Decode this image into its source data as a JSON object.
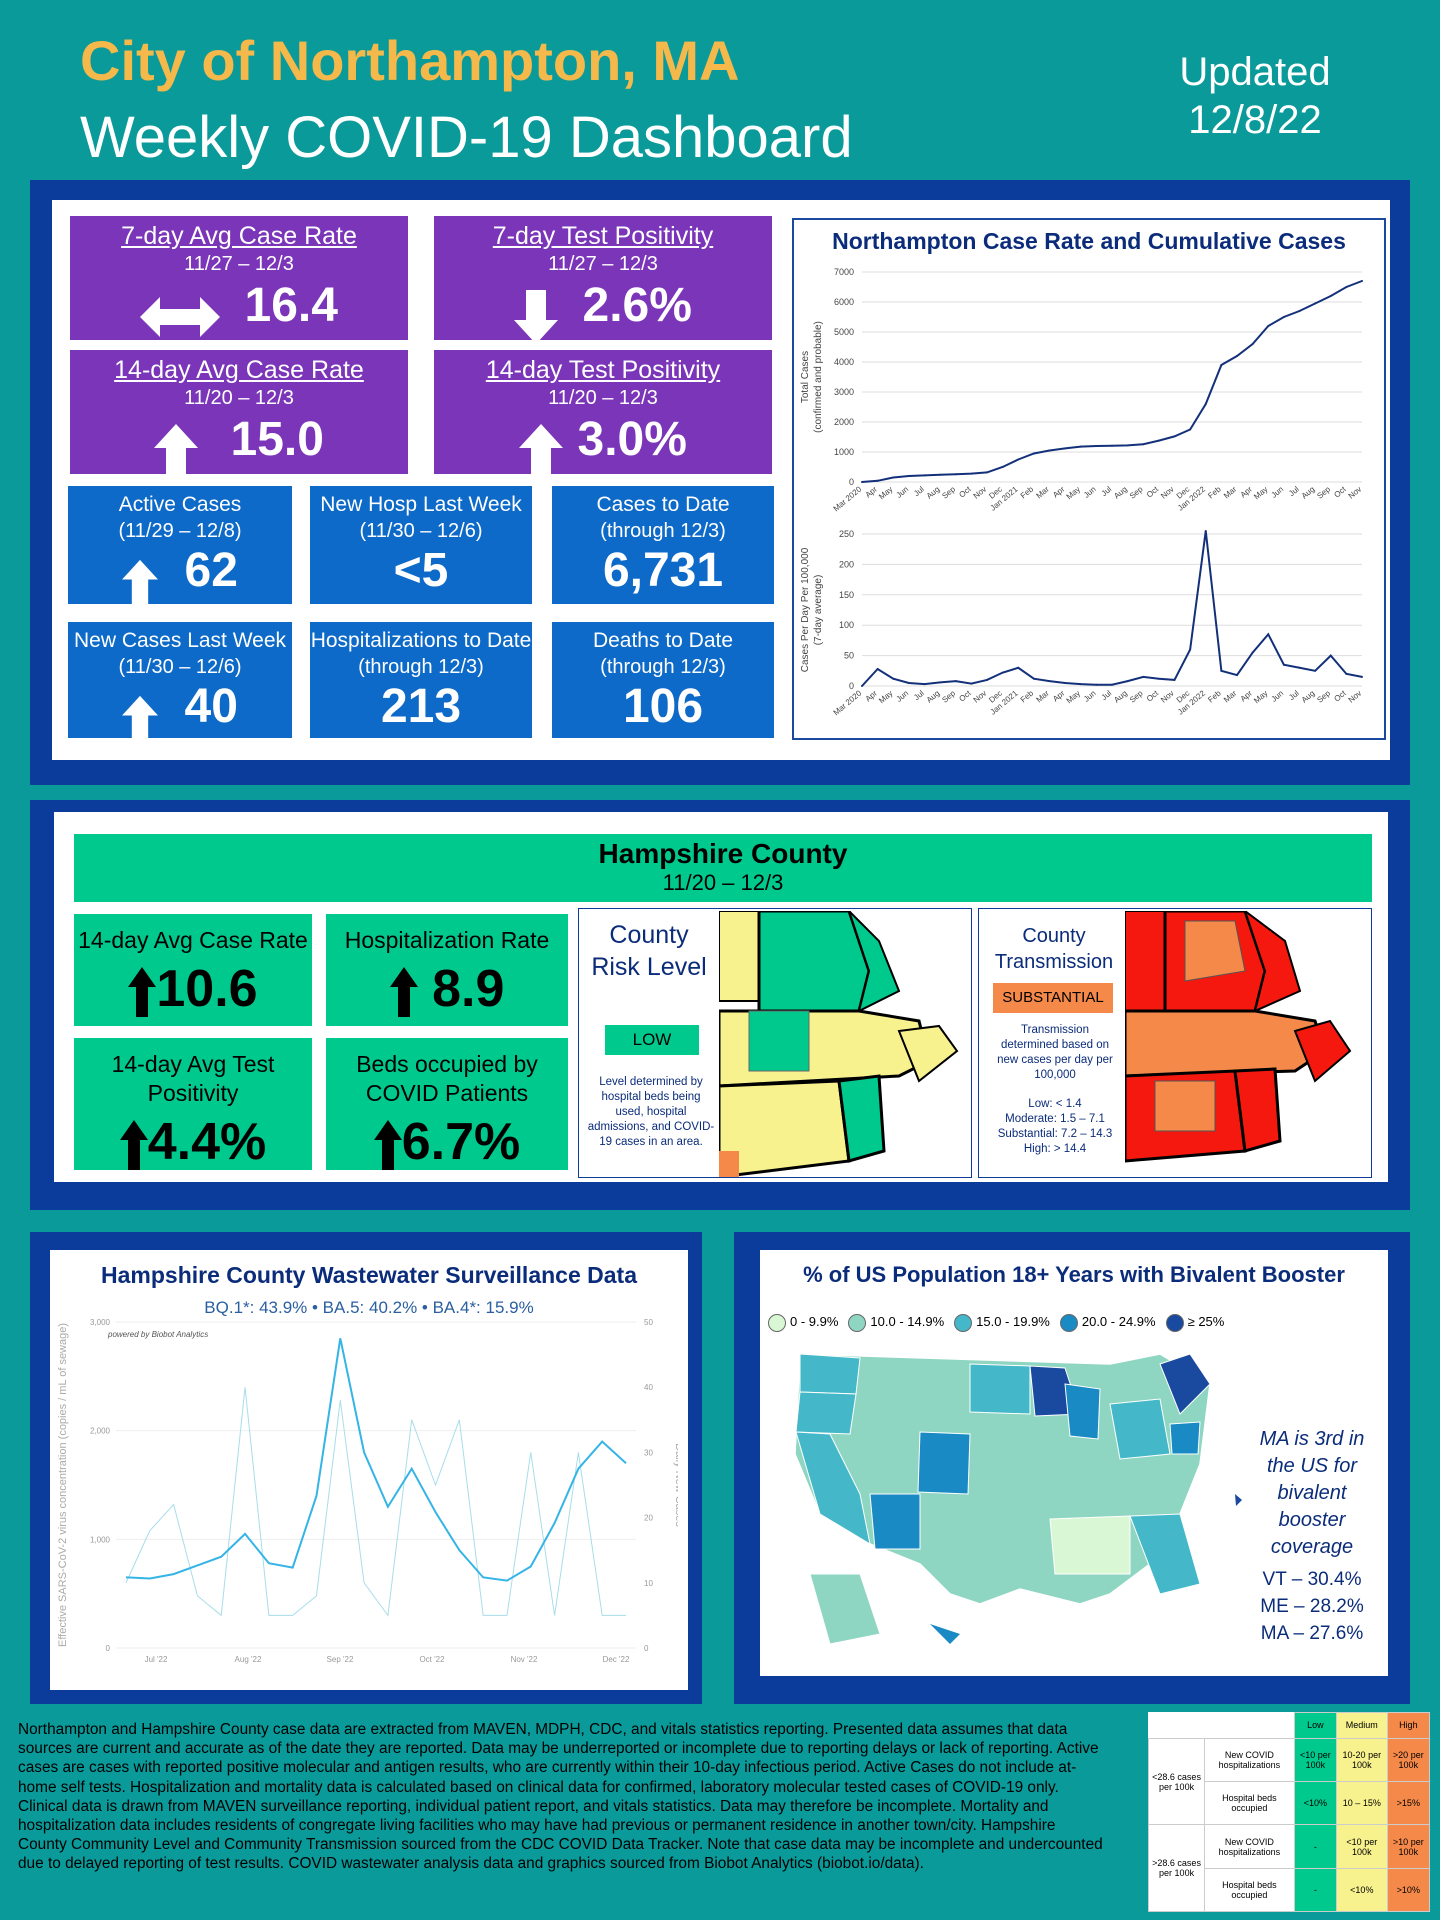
{
  "header": {
    "city": "City of Northampton, MA",
    "title": "Weekly COVID-19 Dashboard",
    "updated_label": "Updated",
    "updated_date": "12/8/22"
  },
  "colors": {
    "purple": "#7b35b8",
    "blue": "#0d6ac8",
    "green": "#00c98d",
    "navy": "#0b3c9c",
    "teal": "#0a9a9a",
    "orange": "#f5b84a"
  },
  "tiles": {
    "case7": {
      "label": "7-day Avg Case Rate",
      "dates": "11/27 – 12/3",
      "value": "16.4",
      "trend": "flat"
    },
    "pos7": {
      "label": "7-day Test Positivity",
      "dates": "11/27 – 12/3",
      "value": "2.6%",
      "trend": "down"
    },
    "case14": {
      "label": "14-day Avg Case Rate",
      "dates": "11/20 – 12/3",
      "value": "15.0",
      "trend": "up"
    },
    "pos14": {
      "label": "14-day Test Positivity",
      "dates": "11/20 – 12/3",
      "value": "3.0%",
      "trend": "up"
    },
    "active": {
      "label": "Active Cases",
      "dates": "(11/29 – 12/8)",
      "value": "62",
      "trend": "up"
    },
    "newhosp": {
      "label": "New Hosp Last Week",
      "dates": "(11/30 – 12/6)",
      "value": "<5"
    },
    "cases": {
      "label": "Cases to Date",
      "dates": "(through 12/3)",
      "value": "6,731"
    },
    "newcases": {
      "label": "New Cases Last Week",
      "dates": "(11/30 – 12/6)",
      "value": "40",
      "trend": "up"
    },
    "hosp": {
      "label": "Hospitalizations to Date",
      "dates": "(through 12/3)",
      "value": "213"
    },
    "deaths": {
      "label": "Deaths to Date",
      "dates": "(through 12/3)",
      "value": "106"
    }
  },
  "county": {
    "title": "Hampshire County",
    "dates": "11/20 – 12/3",
    "case14": {
      "label": "14-day Avg Case Rate",
      "value": "10.6"
    },
    "hosprate": {
      "label": "Hospitalization Rate",
      "value": "8.9"
    },
    "pos14": {
      "label": "14-day Avg Test Positivity",
      "value": "4.4%"
    },
    "beds": {
      "label": "Beds occupied by COVID Patients",
      "value": "6.7%"
    },
    "risk": {
      "title": "County Risk Level",
      "level": "LOW",
      "note": "Level determined by hospital beds being used, hospital admissions, and COVID-19 cases in an area."
    },
    "trans": {
      "title": "County Transmission",
      "level": "SUBSTANTIAL",
      "note": "Transmission determined based on new cases per day per 100,000",
      "low": "Low: < 1.4",
      "moderate": "Moderate: 1.5 – 7.1",
      "substantial": "Substantial: 7.2 – 14.3",
      "high": "High: > 14.4"
    }
  },
  "wastewater": {
    "title": "Hampshire County Wastewater Surveillance Data",
    "variants": "BQ.1*: 43.9% • BA.5: 40.2% • BA.4*: 15.9%",
    "powered": "powered by Biobot Analytics",
    "ylabel": "Effective SARS-CoV-2 virus concentration (copies / mL of sewage)",
    "y2label": "Daily New Cases"
  },
  "booster": {
    "title": "% of US Population 18+ Years with Bivalent Booster",
    "legend": [
      {
        "label": "0 - 9.9%",
        "color": "#d9f7d4"
      },
      {
        "label": "10.0 - 14.9%",
        "color": "#8fd6c2"
      },
      {
        "label": "15.0 - 19.9%",
        "color": "#44b8c8"
      },
      {
        "label": "20.0 - 24.9%",
        "color": "#1a8ac4"
      },
      {
        "label": "≥ 25%",
        "color": "#1a4aa0"
      }
    ],
    "note": "MA is 3rd in the US for bivalent booster coverage",
    "vt": "VT – 30.4%",
    "me": "ME – 28.2%",
    "ma": "MA – 27.6%"
  },
  "footnote": "Northampton and Hampshire County case data are extracted from MAVEN, MDPH, CDC, and vitals statistics reporting. Presented data assumes that data sources are current and accurate as of the date they are reported. Data may be underreported or incomplete due to reporting delays or lack of reporting. Active cases are cases with reported positive molecular and antigen results, who are currently within their 10-day infectious period. Active Cases do not include at-home self tests. Hospitalization and mortality data is calculated based on clinical data for confirmed, laboratory molecular tested cases of COVID-19 only. Clinical data is drawn from MAVEN surveillance reporting, individual patient report, and vitals statistics. Data may therefore be incomplete. Mortality and hospitalization data includes residents of congregate living facilities who may have had previous or permanent residence in another town/city. Hampshire County Community Level and Community Transmission sourced from the CDC COVID Data Tracker. Note that case data may be incomplete and undercounted due to delayed reporting of test results. COVID wastewater analysis data and graphics sourced from Biobot Analytics (biobot.io/data).",
  "levels_table": {
    "headers": [
      "Low",
      "Medium",
      "High"
    ],
    "g1": "<28.6 cases per 100k",
    "g2": ">28.6 cases per 100k",
    "rows": [
      {
        "label": "New COVID hospitalizations",
        "low": "<10 per 100k",
        "med": "10-20 per 100k",
        "high": ">20 per 100k"
      },
      {
        "label": "Hospital beds occupied",
        "low": "<10%",
        "med": "10 – 15%",
        "high": ">15%"
      },
      {
        "label": "New COVID hospitalizations",
        "low": "-",
        "med": "<10 per 100k",
        "high": ">10 per 100k"
      },
      {
        "label": "Hospital beds occupied",
        "low": "-",
        "med": "<10%",
        "high": ">10%"
      }
    ]
  },
  "chart_data": [
    {
      "type": "line",
      "title": "Northampton Case Rate and Cumulative Cases",
      "ylabel": "Total Cases (confirmed and probable)",
      "ylim": [
        0,
        7000
      ],
      "yticks": [
        0,
        1000,
        2000,
        3000,
        4000,
        5000,
        6000,
        7000
      ],
      "xticks": [
        "Mar 2020",
        "Apr",
        "May",
        "Jun",
        "Jul",
        "Aug",
        "Sep",
        "Oct",
        "Nov",
        "Dec",
        "Jan 2021",
        "Feb",
        "Mar",
        "Apr",
        "May",
        "Jun",
        "Jul",
        "Aug",
        "Sep",
        "Oct",
        "Nov",
        "Dec",
        "Jan 2022",
        "Feb",
        "Mar",
        "Apr",
        "May",
        "Jun",
        "Jul",
        "Aug",
        "Sep",
        "Oct",
        "Nov"
      ],
      "x": [
        0,
        1,
        2,
        3,
        4,
        5,
        6,
        7,
        8,
        9,
        10,
        11,
        12,
        13,
        14,
        15,
        16,
        17,
        18,
        19,
        20,
        21,
        22,
        23,
        24,
        25,
        26,
        27,
        28,
        29,
        30,
        31,
        32
      ],
      "values": [
        0,
        40,
        150,
        200,
        220,
        240,
        260,
        280,
        320,
        500,
        750,
        950,
        1050,
        1120,
        1180,
        1200,
        1210,
        1220,
        1260,
        1380,
        1520,
        1750,
        2600,
        3900,
        4200,
        4600,
        5200,
        5500,
        5700,
        5950,
        6200,
        6500,
        6700
      ]
    },
    {
      "type": "line",
      "ylabel": "Cases Per Day Per 100,000 (7-day average)",
      "ylim": [
        0,
        250
      ],
      "yticks": [
        0,
        50,
        100,
        150,
        200,
        250
      ],
      "xticks": [
        "Mar 2020",
        "Apr",
        "May",
        "Jun",
        "Jul",
        "Aug",
        "Sep",
        "Oct",
        "Nov",
        "Dec",
        "Jan 2021",
        "Feb",
        "Mar",
        "Apr",
        "May",
        "Jun",
        "Jul",
        "Aug",
        "Sep",
        "Oct",
        "Nov",
        "Dec",
        "Jan 2022",
        "Feb",
        "Mar",
        "Apr",
        "May",
        "Jun",
        "Jul",
        "Aug",
        "Sep",
        "Oct",
        "Nov"
      ],
      "x": [
        0,
        1,
        2,
        3,
        4,
        5,
        6,
        7,
        8,
        9,
        10,
        11,
        12,
        13,
        14,
        15,
        16,
        17,
        18,
        19,
        20,
        21,
        22,
        23,
        24,
        25,
        26,
        27,
        28,
        29,
        30,
        31,
        32
      ],
      "values": [
        0,
        28,
        12,
        5,
        3,
        6,
        8,
        4,
        10,
        22,
        30,
        12,
        8,
        5,
        3,
        2,
        2,
        8,
        15,
        12,
        10,
        60,
        255,
        25,
        18,
        55,
        85,
        35,
        30,
        25,
        50,
        20,
        15
      ]
    },
    {
      "type": "line",
      "title": "Hampshire County Wastewater Surveillance Data",
      "ylabel": "Effective SARS-CoV-2 virus concentration (copies / mL of sewage)",
      "y2label": "Daily New Cases",
      "ylim": [
        0,
        3000
      ],
      "y2lim": [
        0,
        50
      ],
      "yticks": [
        "0",
        "1,000",
        "2,000",
        "3,000"
      ],
      "y2ticks": [
        "0",
        "10",
        "20",
        "30",
        "40",
        "50"
      ],
      "xticks": [
        "Jul '22",
        "Aug '22",
        "Sep '22",
        "Oct '22",
        "Nov '22",
        "Dec '22"
      ],
      "series": [
        {
          "values": [
            650,
            640,
            680,
            760,
            840,
            1050,
            780,
            740,
            1400,
            2850,
            1800,
            1300,
            1650,
            1250,
            900,
            650,
            620,
            750,
            1150,
            1650,
            1900,
            1700
          ]
        },
        {
          "values": [
            10,
            18,
            22,
            8,
            5,
            40,
            5,
            5,
            8,
            38,
            10,
            5,
            35,
            25,
            35,
            5,
            5,
            30,
            5,
            30,
            5,
            5
          ]
        }
      ]
    }
  ]
}
